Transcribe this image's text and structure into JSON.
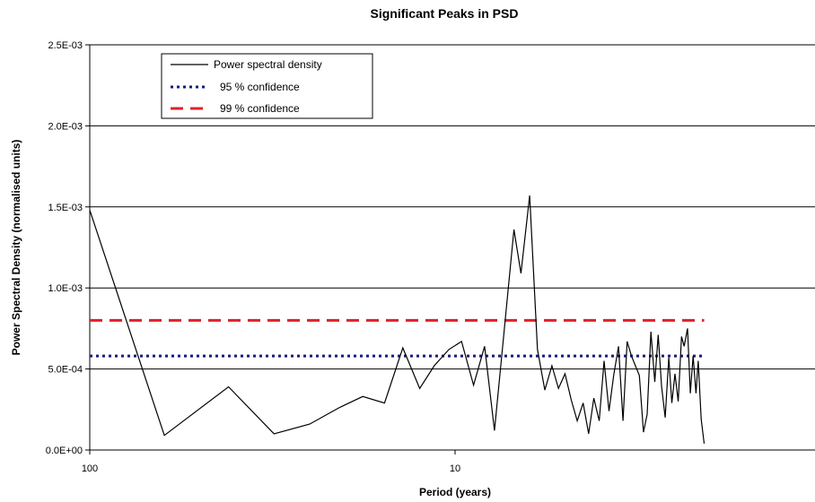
{
  "chart_data": {
    "type": "line",
    "title": "Significant Peaks in PSD",
    "xlabel": "Period (years)",
    "ylabel": "Power Spectral Density (normalised units)",
    "x_scale": "log",
    "x_direction": "decreasing",
    "xlim": [
      100,
      1
    ],
    "ylim": [
      0,
      0.0025
    ],
    "x_ticks": [
      {
        "value": 100,
        "label": "100"
      },
      {
        "value": 10,
        "label": "10"
      }
    ],
    "y_ticks": [
      {
        "value": 0,
        "label": "0.0E+00"
      },
      {
        "value": 0.0005,
        "label": "5.0E-04"
      },
      {
        "value": 0.001,
        "label": "1.0E-03"
      },
      {
        "value": 0.0015,
        "label": "1.5E-03"
      },
      {
        "value": 0.002,
        "label": "2.0E-03"
      },
      {
        "value": 0.0025,
        "label": "2.5E-03"
      }
    ],
    "grid": "horizontal",
    "legend_position": "top-left",
    "series": [
      {
        "name": "Power spectral density",
        "style": "solid",
        "color": "#000000",
        "points": [
          [
            100,
            0.00148
          ],
          [
            62.5,
            9e-05
          ],
          [
            41.7,
            0.00039
          ],
          [
            31.3,
            0.0001
          ],
          [
            25,
            0.00016
          ],
          [
            20.8,
            0.00026
          ],
          [
            17.9,
            0.00033
          ],
          [
            15.6,
            0.00029
          ],
          [
            13.9,
            0.00063
          ],
          [
            12.5,
            0.00038
          ],
          [
            11.4,
            0.00052
          ],
          [
            10.4,
            0.00062
          ],
          [
            9.6,
            0.00067
          ],
          [
            8.9,
            0.0004
          ],
          [
            8.3,
            0.00064
          ],
          [
            7.8,
            0.00012
          ],
          [
            7.4,
            0.00065
          ],
          [
            6.9,
            0.00136
          ],
          [
            6.6,
            0.00109
          ],
          [
            6.25,
            0.00157
          ],
          [
            5.95,
            0.00062
          ],
          [
            5.68,
            0.00037
          ],
          [
            5.43,
            0.00052
          ],
          [
            5.21,
            0.00038
          ],
          [
            5.0,
            0.00047
          ],
          [
            4.81,
            0.00031
          ],
          [
            4.63,
            0.00018
          ],
          [
            4.46,
            0.00029
          ],
          [
            4.31,
            0.0001
          ],
          [
            4.17,
            0.00032
          ],
          [
            4.03,
            0.00018
          ],
          [
            3.91,
            0.00055
          ],
          [
            3.79,
            0.00024
          ],
          [
            3.68,
            0.00046
          ],
          [
            3.57,
            0.00064
          ],
          [
            3.47,
            0.00018
          ],
          [
            3.38,
            0.00067
          ],
          [
            3.29,
            0.00058
          ],
          [
            3.21,
            0.00052
          ],
          [
            3.13,
            0.00046
          ],
          [
            3.05,
            0.00011
          ],
          [
            2.98,
            0.00022
          ],
          [
            2.91,
            0.00073
          ],
          [
            2.84,
            0.00042
          ],
          [
            2.78,
            0.00071
          ],
          [
            2.72,
            0.00039
          ],
          [
            2.66,
            0.0002
          ],
          [
            2.6,
            0.00057
          ],
          [
            2.55,
            0.00029
          ],
          [
            2.5,
            0.00047
          ],
          [
            2.45,
            0.0003
          ],
          [
            2.4,
            0.0007
          ],
          [
            2.36,
            0.00064
          ],
          [
            2.31,
            0.00075
          ],
          [
            2.27,
            0.00035
          ],
          [
            2.23,
            0.00058
          ],
          [
            2.19,
            0.00035
          ],
          [
            2.16,
            0.00055
          ],
          [
            2.12,
            0.00019
          ],
          [
            2.08,
            4e-05
          ]
        ]
      },
      {
        "name": "95 % confidence",
        "style": "dotted",
        "color": "#1a1a80",
        "x": [
          100,
          2.08
        ],
        "y": [
          0.00058,
          0.00058
        ]
      },
      {
        "name": "99 % confidence",
        "style": "dashed",
        "color": "#e0202a",
        "x": [
          100,
          2.08
        ],
        "y": [
          0.0008,
          0.0008
        ]
      }
    ]
  }
}
